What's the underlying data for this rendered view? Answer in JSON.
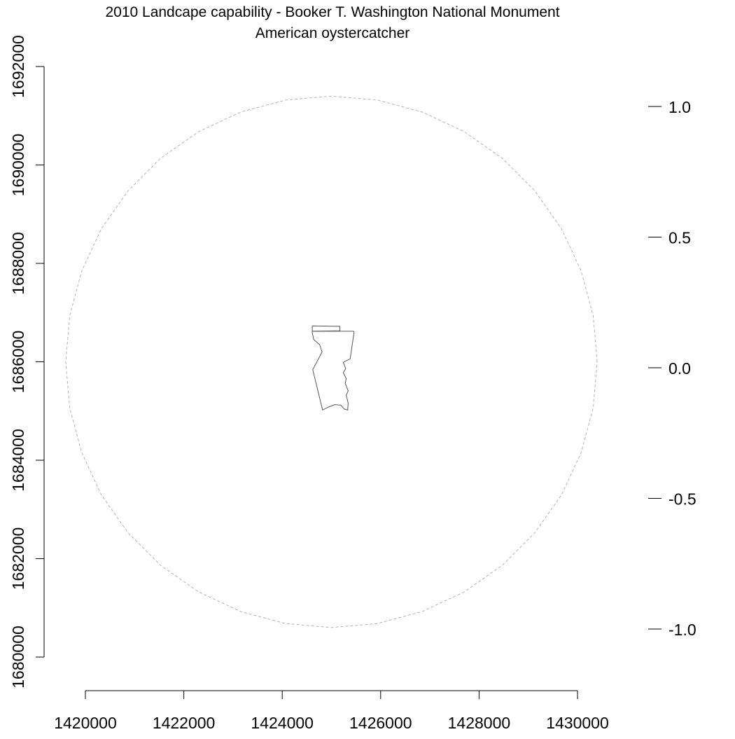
{
  "title": {
    "line1": "2010 Landcape capability - Booker T. Washington National Monument",
    "line2": "American oystercatcher"
  },
  "x_axis": {
    "min": 1420000,
    "max": 1430000,
    "ticks": [
      1420000,
      1422000,
      1424000,
      1426000,
      1428000,
      1430000
    ],
    "tick_labels": [
      "1420000",
      "1422000",
      "1424000",
      "1426000",
      "1428000",
      "1430000"
    ]
  },
  "y_axis": {
    "min": 1680000,
    "max": 1692000,
    "ticks": [
      1680000,
      1682000,
      1684000,
      1686000,
      1688000,
      1690000,
      1692000
    ],
    "tick_labels": [
      "1680000",
      "1682000",
      "1684000",
      "1686000",
      "1688000",
      "1690000",
      "1692000"
    ]
  },
  "legend_scale": {
    "ticks": [
      1.0,
      0.5,
      0.0,
      -0.5,
      -1.0
    ],
    "tick_labels": [
      "1.0",
      "0.5",
      "0.0",
      "-0.5",
      "-1.0"
    ]
  },
  "buffer_circle": {
    "center_x": 1425000,
    "center_y": 1686000,
    "radius": 5400,
    "segments": 36,
    "style": "dashed",
    "color": "#b3b3b3"
  },
  "park_boundary": {
    "color": "#555555",
    "main_polygon": [
      [
        1424610,
        1686590
      ],
      [
        1424610,
        1686620
      ],
      [
        1425450,
        1686620
      ],
      [
        1425460,
        1686600
      ],
      [
        1425380,
        1686060
      ],
      [
        1425240,
        1685990
      ],
      [
        1425290,
        1685860
      ],
      [
        1425240,
        1685780
      ],
      [
        1425300,
        1685660
      ],
      [
        1425280,
        1685560
      ],
      [
        1425340,
        1685410
      ],
      [
        1425300,
        1685320
      ],
      [
        1425340,
        1685160
      ],
      [
        1425330,
        1685020
      ],
      [
        1425260,
        1685040
      ],
      [
        1425190,
        1685120
      ],
      [
        1425070,
        1685130
      ],
      [
        1424940,
        1685080
      ],
      [
        1424820,
        1685020
      ],
      [
        1424620,
        1685840
      ],
      [
        1424810,
        1686200
      ],
      [
        1424760,
        1686350
      ],
      [
        1424640,
        1686450
      ]
    ],
    "strip_polygon": [
      [
        1424610,
        1686620
      ],
      [
        1424610,
        1686730
      ],
      [
        1425170,
        1686720
      ],
      [
        1425170,
        1686630
      ]
    ]
  }
}
